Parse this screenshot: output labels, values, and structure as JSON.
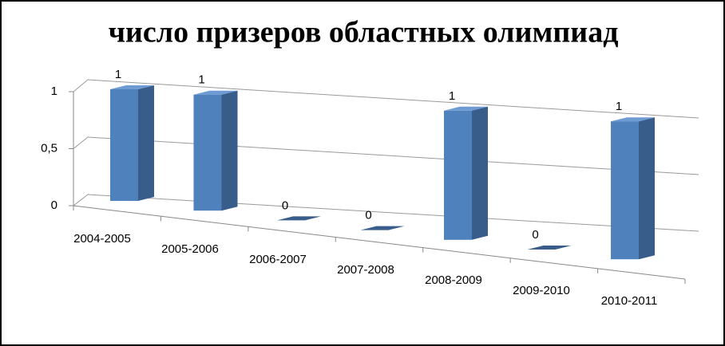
{
  "chart_data": {
    "type": "bar3d",
    "title": "число призеров областных олимпиад",
    "categories": [
      "2004-2005",
      "2005-2006",
      "2006-2007",
      "2007-2008",
      "2008-2009",
      "2009-2010",
      "2010-2011"
    ],
    "values": [
      1,
      1,
      0,
      0,
      1,
      0,
      1
    ],
    "color": "#4f81bd",
    "ylim": [
      0,
      1
    ],
    "yticks": [
      0,
      {
        "value": 0.5,
        "label": "0,5"
      },
      1
    ],
    "grid": true
  }
}
